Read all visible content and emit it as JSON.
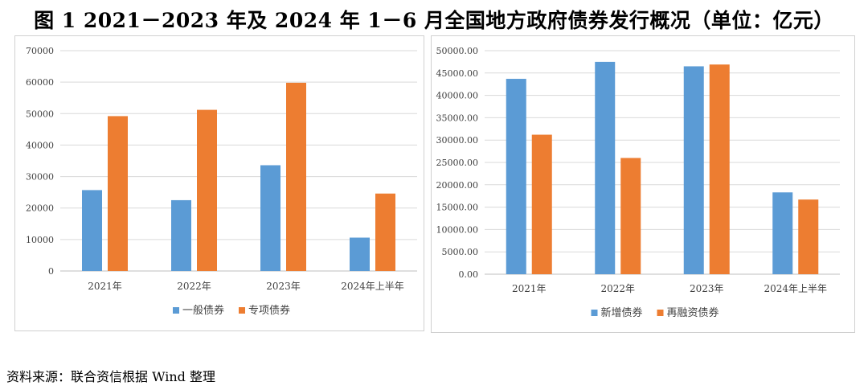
{
  "page": {
    "title": "图 1  2021－2023 年及 2024 年 1－6 月全国地方政府债券发行概况（单位：亿元）",
    "source": "资料来源：联合资信根据 Wind 整理"
  },
  "colors": {
    "blue": "#5B9BD5",
    "orange": "#ED7D31",
    "grid": "#d9d9d9",
    "axis": "#bfbfbf"
  },
  "chart_data": [
    {
      "type": "bar",
      "categories": [
        "2021年",
        "2022年",
        "2023年",
        "2024年上半年"
      ],
      "series": [
        {
          "name": "一般债券",
          "values": [
            25700,
            22500,
            33600,
            10600
          ]
        },
        {
          "name": "专项债券",
          "values": [
            49200,
            51200,
            59800,
            24600
          ]
        }
      ],
      "ylim": [
        0,
        70000
      ],
      "yticks": [
        "0",
        "10000",
        "20000",
        "30000",
        "40000",
        "50000",
        "60000",
        "70000"
      ],
      "grid": true,
      "legend": "bottom"
    },
    {
      "type": "bar",
      "categories": [
        "2021年",
        "2022年",
        "2023年",
        "2024年上半年"
      ],
      "series": [
        {
          "name": "新增债券",
          "values": [
            43700,
            47500,
            46500,
            18300
          ]
        },
        {
          "name": "再融资债券",
          "values": [
            31200,
            26000,
            46900,
            16700
          ]
        }
      ],
      "ylim": [
        0,
        50000
      ],
      "yticks": [
        "0.00",
        "5000.00",
        "10000.00",
        "15000.00",
        "20000.00",
        "25000.00",
        "30000.00",
        "35000.00",
        "40000.00",
        "45000.00",
        "50000.00"
      ],
      "grid": true,
      "legend": "bottom"
    }
  ]
}
